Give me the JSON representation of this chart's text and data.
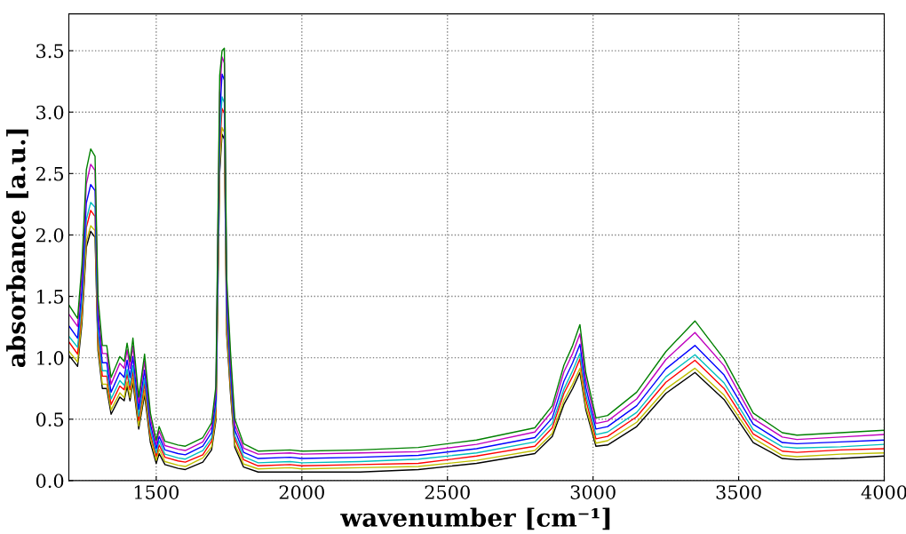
{
  "chart_data": {
    "type": "line",
    "xlabel": "wavenumber [cm⁻¹]",
    "ylabel": "absorbance [a.u.]",
    "x": [
      1200,
      1230,
      1245,
      1260,
      1275,
      1290,
      1300,
      1315,
      1330,
      1345,
      1375,
      1390,
      1400,
      1410,
      1420,
      1440,
      1460,
      1480,
      1500,
      1510,
      1530,
      1575,
      1600,
      1660,
      1690,
      1705,
      1718,
      1726,
      1734,
      1742,
      1755,
      1770,
      1800,
      1850,
      1960,
      2000,
      2200,
      2400,
      2600,
      2800,
      2860,
      2900,
      2930,
      2955,
      2975,
      3010,
      3050,
      3150,
      3250,
      3350,
      3450,
      3550,
      3650,
      3700,
      3850,
      4000
    ],
    "series": [
      {
        "color": "#000000",
        "values": [
          1.02,
          0.93,
          1.28,
          1.9,
          2.03,
          1.98,
          1.06,
          0.75,
          0.75,
          0.54,
          0.68,
          0.65,
          0.77,
          0.65,
          0.8,
          0.42,
          0.7,
          0.31,
          0.14,
          0.22,
          0.13,
          0.1,
          0.09,
          0.15,
          0.25,
          0.49,
          2.51,
          2.82,
          2.78,
          1.19,
          0.71,
          0.27,
          0.11,
          0.07,
          0.07,
          0.07,
          0.07,
          0.09,
          0.14,
          0.22,
          0.36,
          0.62,
          0.75,
          0.88,
          0.58,
          0.28,
          0.29,
          0.44,
          0.71,
          0.88,
          0.66,
          0.31,
          0.18,
          0.17,
          0.18,
          0.2
        ]
      },
      {
        "color": "#bfbf00",
        "values": [
          1.055,
          0.965,
          1.325,
          1.945,
          2.075,
          2.035,
          1.095,
          0.785,
          0.785,
          0.575,
          0.715,
          0.675,
          0.805,
          0.675,
          0.835,
          0.445,
          0.735,
          0.345,
          0.165,
          0.255,
          0.155,
          0.125,
          0.115,
          0.185,
          0.275,
          0.515,
          2.565,
          2.875,
          2.835,
          1.235,
          0.745,
          0.295,
          0.135,
          0.095,
          0.105,
          0.095,
          0.105,
          0.115,
          0.165,
          0.245,
          0.385,
          0.655,
          0.785,
          0.915,
          0.605,
          0.305,
          0.325,
          0.475,
          0.745,
          0.915,
          0.695,
          0.345,
          0.205,
          0.195,
          0.215,
          0.225
        ]
      },
      {
        "color": "#ff0000",
        "values": [
          1.13,
          1.03,
          1.41,
          2.06,
          2.2,
          2.15,
          1.17,
          0.85,
          0.85,
          0.62,
          0.77,
          0.74,
          0.87,
          0.74,
          0.89,
          0.49,
          0.79,
          0.38,
          0.2,
          0.29,
          0.19,
          0.16,
          0.15,
          0.21,
          0.32,
          0.57,
          2.71,
          3.03,
          2.99,
          1.31,
          0.8,
          0.34,
          0.17,
          0.12,
          0.13,
          0.12,
          0.13,
          0.14,
          0.2,
          0.28,
          0.43,
          0.71,
          0.85,
          0.99,
          0.66,
          0.34,
          0.36,
          0.52,
          0.8,
          0.98,
          0.75,
          0.38,
          0.24,
          0.23,
          0.25,
          0.26
        ]
      },
      {
        "color": "#00bfbf",
        "values": [
          1.175,
          1.085,
          1.465,
          2.125,
          2.265,
          2.225,
          1.225,
          0.895,
          0.895,
          0.665,
          0.815,
          0.775,
          0.905,
          0.775,
          0.935,
          0.525,
          0.835,
          0.415,
          0.225,
          0.325,
          0.215,
          0.185,
          0.175,
          0.245,
          0.345,
          0.605,
          2.795,
          3.125,
          3.075,
          1.365,
          0.845,
          0.365,
          0.195,
          0.145,
          0.155,
          0.145,
          0.155,
          0.175,
          0.225,
          0.315,
          0.465,
          0.745,
          0.895,
          1.035,
          0.705,
          0.375,
          0.395,
          0.555,
          0.845,
          1.025,
          0.795,
          0.415,
          0.275,
          0.265,
          0.275,
          0.295
        ]
      },
      {
        "color": "#0000ff",
        "values": [
          1.26,
          1.16,
          1.56,
          2.26,
          2.41,
          2.36,
          1.31,
          0.96,
          0.96,
          0.72,
          0.88,
          0.84,
          0.98,
          0.84,
          1.01,
          0.58,
          0.9,
          0.46,
          0.26,
          0.36,
          0.25,
          0.22,
          0.21,
          0.28,
          0.39,
          0.66,
          2.96,
          3.31,
          3.26,
          1.46,
          0.91,
          0.41,
          0.23,
          0.18,
          0.19,
          0.18,
          0.19,
          0.205,
          0.26,
          0.35,
          0.51,
          0.81,
          0.96,
          1.11,
          0.76,
          0.42,
          0.44,
          0.61,
          0.91,
          1.1,
          0.86,
          0.46,
          0.31,
          0.3,
          0.315,
          0.33
        ]
      },
      {
        "color": "#bf00bf",
        "values": [
          1.355,
          1.255,
          1.675,
          2.415,
          2.575,
          2.525,
          1.415,
          1.035,
          1.035,
          0.785,
          0.955,
          0.915,
          1.065,
          0.915,
          1.095,
          0.635,
          0.975,
          0.505,
          0.295,
          0.405,
          0.285,
          0.255,
          0.245,
          0.315,
          0.435,
          0.725,
          3.155,
          3.45,
          3.4,
          1.565,
          0.985,
          0.455,
          0.265,
          0.215,
          0.225,
          0.215,
          0.225,
          0.235,
          0.295,
          0.395,
          0.565,
          0.885,
          1.035,
          1.195,
          0.825,
          0.465,
          0.485,
          0.665,
          0.985,
          1.205,
          0.935,
          0.505,
          0.355,
          0.335,
          0.355,
          0.375
        ]
      },
      {
        "color": "#008000",
        "values": [
          1.43,
          1.32,
          1.76,
          2.53,
          2.7,
          2.64,
          1.49,
          1.1,
          1.1,
          0.84,
          1.01,
          0.97,
          1.12,
          0.97,
          1.16,
          0.68,
          1.03,
          0.55,
          0.33,
          0.44,
          0.32,
          0.29,
          0.28,
          0.35,
          0.47,
          0.77,
          3.3,
          3.5,
          3.52,
          1.65,
          1.05,
          0.5,
          0.3,
          0.24,
          0.25,
          0.24,
          0.25,
          0.27,
          0.33,
          0.43,
          0.61,
          0.94,
          1.1,
          1.27,
          0.88,
          0.51,
          0.53,
          0.72,
          1.05,
          1.3,
          0.99,
          0.55,
          0.39,
          0.37,
          0.39,
          0.41
        ]
      }
    ],
    "xlim": [
      1200,
      4000
    ],
    "xticks": [
      1500,
      2000,
      2500,
      3000,
      3500,
      4000
    ],
    "ylim": [
      0,
      3.8
    ],
    "yticks": [
      {
        "value": 0,
        "label": "0.0"
      },
      0.5,
      {
        "value": 1,
        "label": "1.0"
      },
      1.5,
      {
        "value": 2,
        "label": "2.0"
      },
      2.5,
      {
        "value": 3,
        "label": "3.0"
      },
      3.5
    ],
    "grid": true,
    "legend": false
  }
}
